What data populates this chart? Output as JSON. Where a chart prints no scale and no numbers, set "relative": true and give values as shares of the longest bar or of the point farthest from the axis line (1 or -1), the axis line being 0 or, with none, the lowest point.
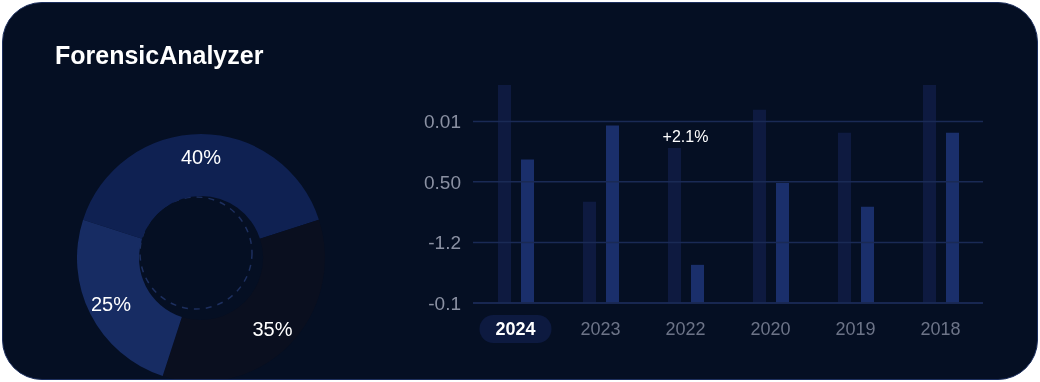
{
  "chart_data": [
    {
      "type": "donut",
      "title": "ForensicAnalyzer",
      "categories": [
        null,
        null,
        null
      ],
      "values": [
        40,
        35,
        25
      ],
      "value_labels": [
        "40%",
        "35%",
        "25%"
      ],
      "colors": [
        "#0f2152",
        "#0a0f1f",
        "#172c63"
      ]
    },
    {
      "type": "bar",
      "relative": true,
      "categories": [
        "2024",
        "2023",
        "2022",
        "2020",
        "2019",
        "2018"
      ],
      "series": [
        {
          "color": "#0e1a40",
          "values": [
            1,
            0.464,
            0.711,
            0.886,
            0.781,
            1
          ]
        },
        {
          "color": "#1a2f6b",
          "values": [
            0.658,
            0.814,
            0.175,
            0.55,
            0.442,
            0.781
          ]
        }
      ],
      "ref_lines": [
        {
          "axis": "y",
          "value": 0.833,
          "color": "#1a2a55"
        },
        {
          "axis": "y",
          "value": 0.556,
          "color": "#1a2a55"
        },
        {
          "axis": "y",
          "value": 0.278,
          "color": "#1a2a55"
        },
        {
          "axis": "y",
          "value": 0,
          "color": "#1a2a55"
        }
      ],
      "annotations": [
        "0.01",
        "0.50",
        "-1.2",
        "-0.1",
        {
          "text": "+2.1%",
          "x": "2022",
          "y": 0.711
        }
      ]
    }
  ]
}
